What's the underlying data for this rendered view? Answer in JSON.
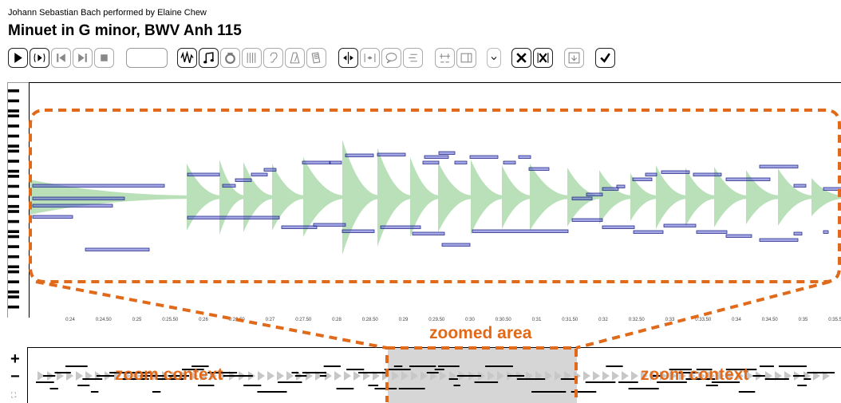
{
  "header": {
    "subtitle": "Johann Sebastian Bach performed by Elaine Chew",
    "title": "Minuet in G minor, BWV Anh 115"
  },
  "toolbar": {
    "buttons": [
      {
        "name": "play-button",
        "icon": "play-icon"
      },
      {
        "name": "play-around-button",
        "icon": "play-around-icon"
      },
      {
        "name": "skip-back-button",
        "icon": "skip-back-icon"
      },
      {
        "name": "skip-forward-button",
        "icon": "skip-forward-icon"
      },
      {
        "name": "stop-button",
        "icon": "stop-icon"
      },
      {
        "name": "waveform-button",
        "icon": "waveform-icon"
      },
      {
        "name": "notes-button",
        "icon": "notes-icon"
      },
      {
        "name": "sustain-button",
        "icon": "sustain-icon"
      },
      {
        "name": "beats-button",
        "icon": "bars-icon"
      },
      {
        "name": "ear-button",
        "icon": "ear-icon"
      },
      {
        "name": "metronome-button",
        "icon": "metronome-icon"
      },
      {
        "name": "score-button",
        "icon": "pages-icon"
      },
      {
        "name": "insert-boundary-button",
        "icon": "insert-boundary-icon"
      },
      {
        "name": "boundary-button",
        "icon": "boundary-icon"
      },
      {
        "name": "comment-button",
        "icon": "speech-bubble-icon"
      },
      {
        "name": "align-button",
        "icon": "align-icon"
      },
      {
        "name": "tempo-button",
        "icon": "tempo-icon"
      },
      {
        "name": "layout-button",
        "icon": "layout-icon"
      },
      {
        "name": "dropdown-button",
        "icon": "chevron-down-icon"
      },
      {
        "name": "delete-button",
        "icon": "close-icon"
      },
      {
        "name": "delete-bars-button",
        "icon": "close-bars-icon"
      },
      {
        "name": "save-button",
        "icon": "save-icon"
      },
      {
        "name": "submit-button",
        "icon": "check-icon"
      }
    ],
    "position_box_value": ""
  },
  "time_axis": {
    "ticks": [
      "0:24",
      "0:24.50",
      "0:25",
      "0:25.50",
      "0:26",
      "0:26.50",
      "0:27",
      "0:27.50",
      "0:28",
      "0:28.50",
      "0:29",
      "0:29.50",
      "0:30",
      "0:30.50",
      "0:31",
      "0:31.50",
      "0:32",
      "0:32.50",
      "0:33",
      "0:33.50",
      "0:34",
      "0:34.50",
      "0:35",
      "0:35.50"
    ]
  },
  "annotations": {
    "zoomed_area": "zoomed area",
    "zoom_context_left": "zoom context",
    "zoom_context_right": "zoom context"
  },
  "overview": {
    "zoom_in": "+",
    "zoom_out": "−",
    "expand": "⛶"
  },
  "colors": {
    "accent": "#e06a1a",
    "note_fill": "#5a5fd0",
    "waveform": "#b9e0b9",
    "selection": "#d6d6d6"
  }
}
